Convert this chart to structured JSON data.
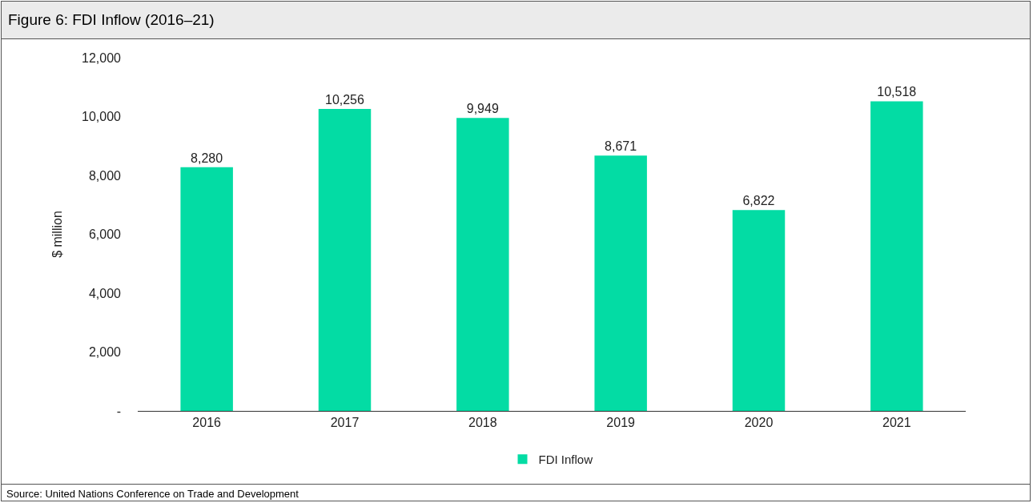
{
  "chart_data": {
    "type": "bar",
    "title": "Figure 6: FDI Inflow (2016–21)",
    "ylabel": "$ million",
    "categories": [
      "2016",
      "2017",
      "2018",
      "2019",
      "2020",
      "2021"
    ],
    "series": [
      {
        "name": "FDI Inflow",
        "color": "#03dca4",
        "values": [
          8280,
          10256,
          9949,
          8671,
          6822,
          10518
        ]
      }
    ],
    "ylim": [
      0,
      12000
    ],
    "yticks": [
      {
        "value": 0,
        "label": "-"
      },
      {
        "value": 2000,
        "label": "2,000"
      },
      {
        "value": 4000,
        "label": "4,000"
      },
      {
        "value": 6000,
        "label": "6,000"
      },
      {
        "value": 8000,
        "label": "8,000"
      },
      {
        "value": 10000,
        "label": "10,000"
      },
      {
        "value": 12000,
        "label": "12,000"
      }
    ],
    "value_labels": [
      "8,280",
      "10,256",
      "9,949",
      "8,671",
      "6,822",
      "10,518"
    ],
    "grid": false,
    "legend": "bottom",
    "annotations": [
      "Source: United Nations Conference on Trade and Development"
    ]
  }
}
